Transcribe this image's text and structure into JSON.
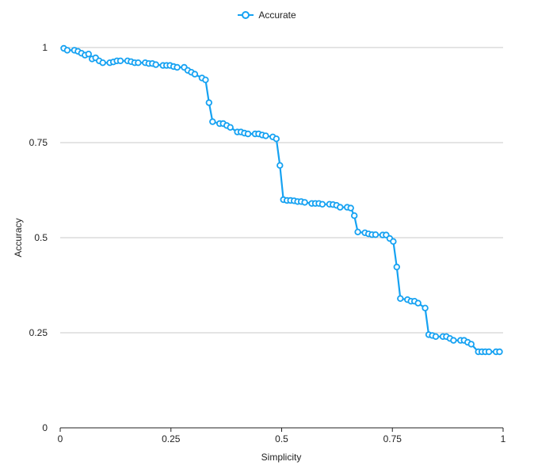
{
  "colors": {
    "series": "#16a2f2",
    "grid": "#c8c8c8",
    "axis": "#222222"
  },
  "chart_data": {
    "type": "line",
    "title": "",
    "xlabel": "Simplicity",
    "ylabel": "Accuracy",
    "xlim": [
      0,
      1
    ],
    "ylim": [
      0,
      1
    ],
    "x_ticks": [
      "0",
      "0.25",
      "0.5",
      "0.75",
      "1"
    ],
    "y_ticks": [
      "0",
      "0.25",
      "0.5",
      "0.75",
      "1"
    ],
    "grid": "horizontal",
    "legend_position": "top-center",
    "series": [
      {
        "name": "Accurate",
        "marker": "open-circle",
        "x": [
          0.008,
          0.016,
          0.032,
          0.04,
          0.048,
          0.056,
          0.064,
          0.072,
          0.08,
          0.088,
          0.096,
          0.112,
          0.12,
          0.128,
          0.136,
          0.152,
          0.16,
          0.168,
          0.176,
          0.192,
          0.2,
          0.208,
          0.216,
          0.232,
          0.24,
          0.248,
          0.256,
          0.264,
          0.28,
          0.288,
          0.296,
          0.304,
          0.32,
          0.328,
          0.336,
          0.344,
          0.36,
          0.368,
          0.376,
          0.384,
          0.4,
          0.408,
          0.416,
          0.424,
          0.44,
          0.448,
          0.456,
          0.464,
          0.48,
          0.488,
          0.496,
          0.504,
          0.512,
          0.52,
          0.528,
          0.536,
          0.544,
          0.552,
          0.568,
          0.576,
          0.584,
          0.592,
          0.608,
          0.616,
          0.624,
          0.632,
          0.648,
          0.656,
          0.664,
          0.672,
          0.688,
          0.696,
          0.704,
          0.712,
          0.728,
          0.736,
          0.744,
          0.752,
          0.76,
          0.768,
          0.784,
          0.792,
          0.8,
          0.808,
          0.824,
          0.832,
          0.84,
          0.848,
          0.864,
          0.872,
          0.88,
          0.888,
          0.904,
          0.912,
          0.92,
          0.928,
          0.944,
          0.952,
          0.96,
          0.968,
          0.984,
          0.992
        ],
        "y": [
          0.998,
          0.993,
          0.993,
          0.99,
          0.985,
          0.98,
          0.983,
          0.97,
          0.973,
          0.965,
          0.96,
          0.96,
          0.962,
          0.965,
          0.965,
          0.965,
          0.963,
          0.96,
          0.96,
          0.96,
          0.958,
          0.958,
          0.955,
          0.953,
          0.953,
          0.953,
          0.95,
          0.948,
          0.948,
          0.94,
          0.935,
          0.93,
          0.92,
          0.915,
          0.855,
          0.805,
          0.8,
          0.8,
          0.795,
          0.79,
          0.778,
          0.778,
          0.775,
          0.773,
          0.773,
          0.773,
          0.77,
          0.768,
          0.765,
          0.76,
          0.69,
          0.6,
          0.598,
          0.598,
          0.597,
          0.595,
          0.595,
          0.593,
          0.59,
          0.59,
          0.59,
          0.588,
          0.588,
          0.587,
          0.585,
          0.58,
          0.58,
          0.578,
          0.558,
          0.515,
          0.513,
          0.51,
          0.508,
          0.508,
          0.507,
          0.507,
          0.498,
          0.49,
          0.423,
          0.34,
          0.337,
          0.333,
          0.333,
          0.328,
          0.315,
          0.245,
          0.243,
          0.24,
          0.24,
          0.24,
          0.235,
          0.23,
          0.23,
          0.23,
          0.225,
          0.22,
          0.2,
          0.2,
          0.2,
          0.2,
          0.2,
          0.2
        ]
      }
    ]
  }
}
